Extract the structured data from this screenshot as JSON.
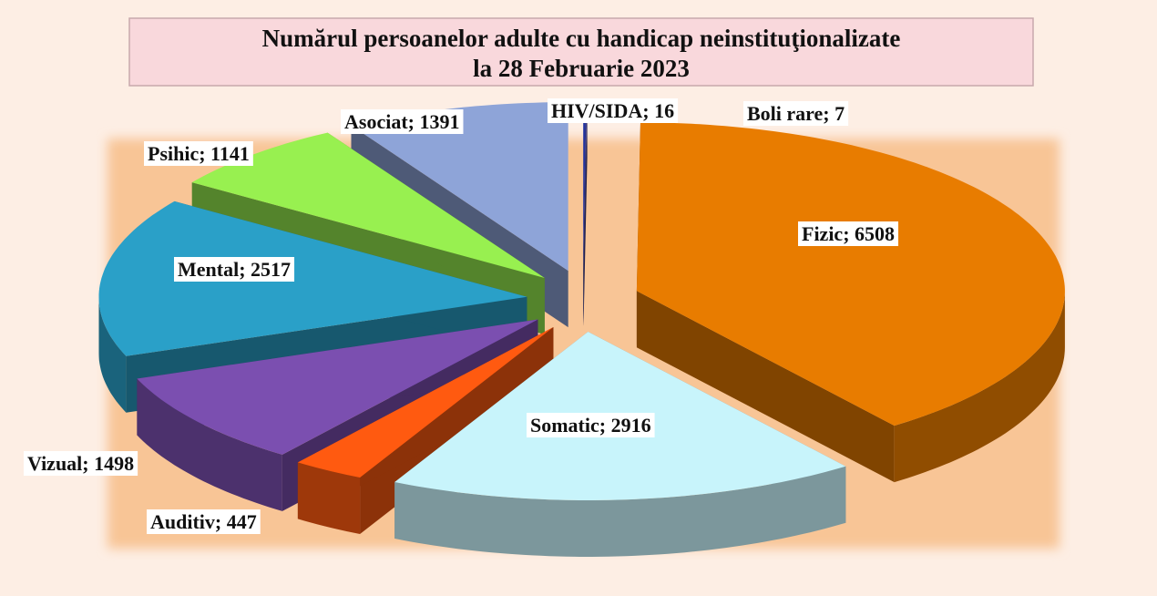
{
  "chart_data": {
    "type": "pie3d",
    "title": [
      "Numărul persoanelor adulte cu handicap neinstituţionalizate",
      "la  28 Februarie 2023"
    ],
    "categories": [
      "HIV/SIDA",
      "Boli rare",
      "Fizic",
      "Somatic",
      "Auditiv",
      "Vizual",
      "Mental",
      "Psihic",
      "Asociat"
    ],
    "values": [
      16,
      7,
      6508,
      2916,
      447,
      1498,
      2517,
      1141,
      1391
    ],
    "value_labels": [
      "HIV/SIDA; 16",
      "Boli rare; 7",
      "Fizic; 6508",
      "Somatic; 2916",
      "Auditiv; 447",
      "Vizual; 1498",
      "Mental; 2517",
      "Psihic; 1141",
      "Asociat; 1391"
    ],
    "colors": [
      "#2233a0",
      "#3c3c8c",
      "#e87c00",
      "#c8f4fb",
      "#ff5a10",
      "#7b4fb0",
      "#2aa0c8",
      "#98f050",
      "#8ea4d8"
    ]
  }
}
